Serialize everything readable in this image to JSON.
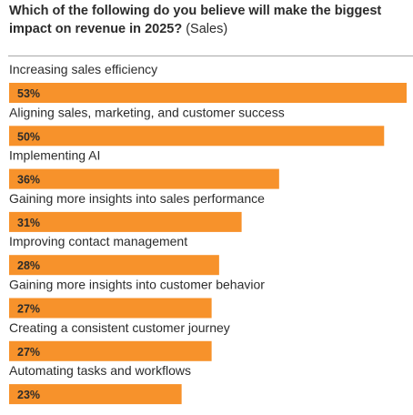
{
  "header": {
    "title_bold": "Which of the following do you believe will make the biggest impact on revenue in 2025?",
    "title_suffix": " (Sales)"
  },
  "colors": {
    "bar": "#F7922B",
    "text": "#2B2B2B",
    "divider": "#A8A8A8"
  },
  "chart_data": {
    "type": "bar",
    "orientation": "horizontal",
    "categories": [
      "Increasing sales efficiency",
      "Aligning sales, marketing, and customer success",
      "Implementing AI",
      "Gaining more insights into sales performance",
      "Improving contact management",
      "Gaining more insights into customer behavior",
      "Creating a consistent customer journey",
      "Automating tasks and workflows"
    ],
    "values": [
      53,
      50,
      36,
      31,
      28,
      27,
      27,
      23
    ],
    "value_labels": [
      "53%",
      "50%",
      "36%",
      "31%",
      "28%",
      "27%",
      "27%",
      "23%"
    ],
    "unit": "%",
    "xlim": [
      0,
      53
    ]
  }
}
